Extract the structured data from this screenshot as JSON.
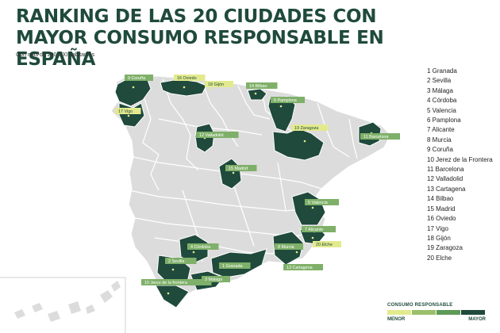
{
  "header": {
    "title": "RANKING DE LAS 20 CIUDADES CON MAYOR CONSUMO RESPONSABLE EN ESPAÑA",
    "subtitle": "Con más de 200.000 habitantes"
  },
  "ranking": [
    "1 Granada",
    "2 Sevilla",
    "3 Málaga",
    "4 Córdoba",
    "5 Valencia",
    "6 Pamplona",
    "7 Alicante",
    "8 Murcia",
    "9 Coruña",
    "10 Jerez de la Frontera",
    "11 Barcelona",
    "12 Valladolid",
    "13 Cartagena",
    "14 Bilbao",
    "15 Madrid",
    "16 Oviedo",
    "17 Vigo",
    "18 Gijón",
    "19 Zaragoza",
    "20 Elche"
  ],
  "map_labels": [
    {
      "text": "9 Coruña",
      "tone": "mid"
    },
    {
      "text": "16 Oviedo",
      "tone": "light"
    },
    {
      "text": "18 Gijón",
      "tone": "light"
    },
    {
      "text": "14 Bilbao",
      "tone": "mid"
    },
    {
      "text": "6 Pamplona",
      "tone": "mid"
    },
    {
      "text": "17 Vigo",
      "tone": "light"
    },
    {
      "text": "19 Zaragoza",
      "tone": "light"
    },
    {
      "text": "11 Barcelona",
      "tone": "mid"
    },
    {
      "text": "12 Valladolid",
      "tone": "mid"
    },
    {
      "text": "15 Madrid",
      "tone": "mid"
    },
    {
      "text": "5 Valencia",
      "tone": "mid"
    },
    {
      "text": "7 Alicante",
      "tone": "mid"
    },
    {
      "text": "20 Elche",
      "tone": "light"
    },
    {
      "text": "8 Murcia",
      "tone": "mid"
    },
    {
      "text": "13 Cartagena",
      "tone": "mid"
    },
    {
      "text": "4 Córdoba",
      "tone": "mid"
    },
    {
      "text": "2 Sevilla",
      "tone": "mid"
    },
    {
      "text": "1 Granada",
      "tone": "mid"
    },
    {
      "text": "10 Jerez de la frontera",
      "tone": "mid"
    },
    {
      "text": "3 Málaga",
      "tone": "mid"
    }
  ],
  "legend": {
    "title": "CONSUMO RESPONSABLE",
    "min_label": "MENOR",
    "max_label": "MAYOR",
    "scale_colors": [
      "#e3ea8e",
      "#9bc06a",
      "#5e9a57",
      "#1f4a3c"
    ]
  },
  "colors": {
    "title": "#1f4a3c",
    "highlight": "#1f4a3c",
    "region": "#dcdcdc",
    "border": "#ffffff",
    "label_light": "#e3ea8e",
    "label_mid": "#7fb069"
  }
}
